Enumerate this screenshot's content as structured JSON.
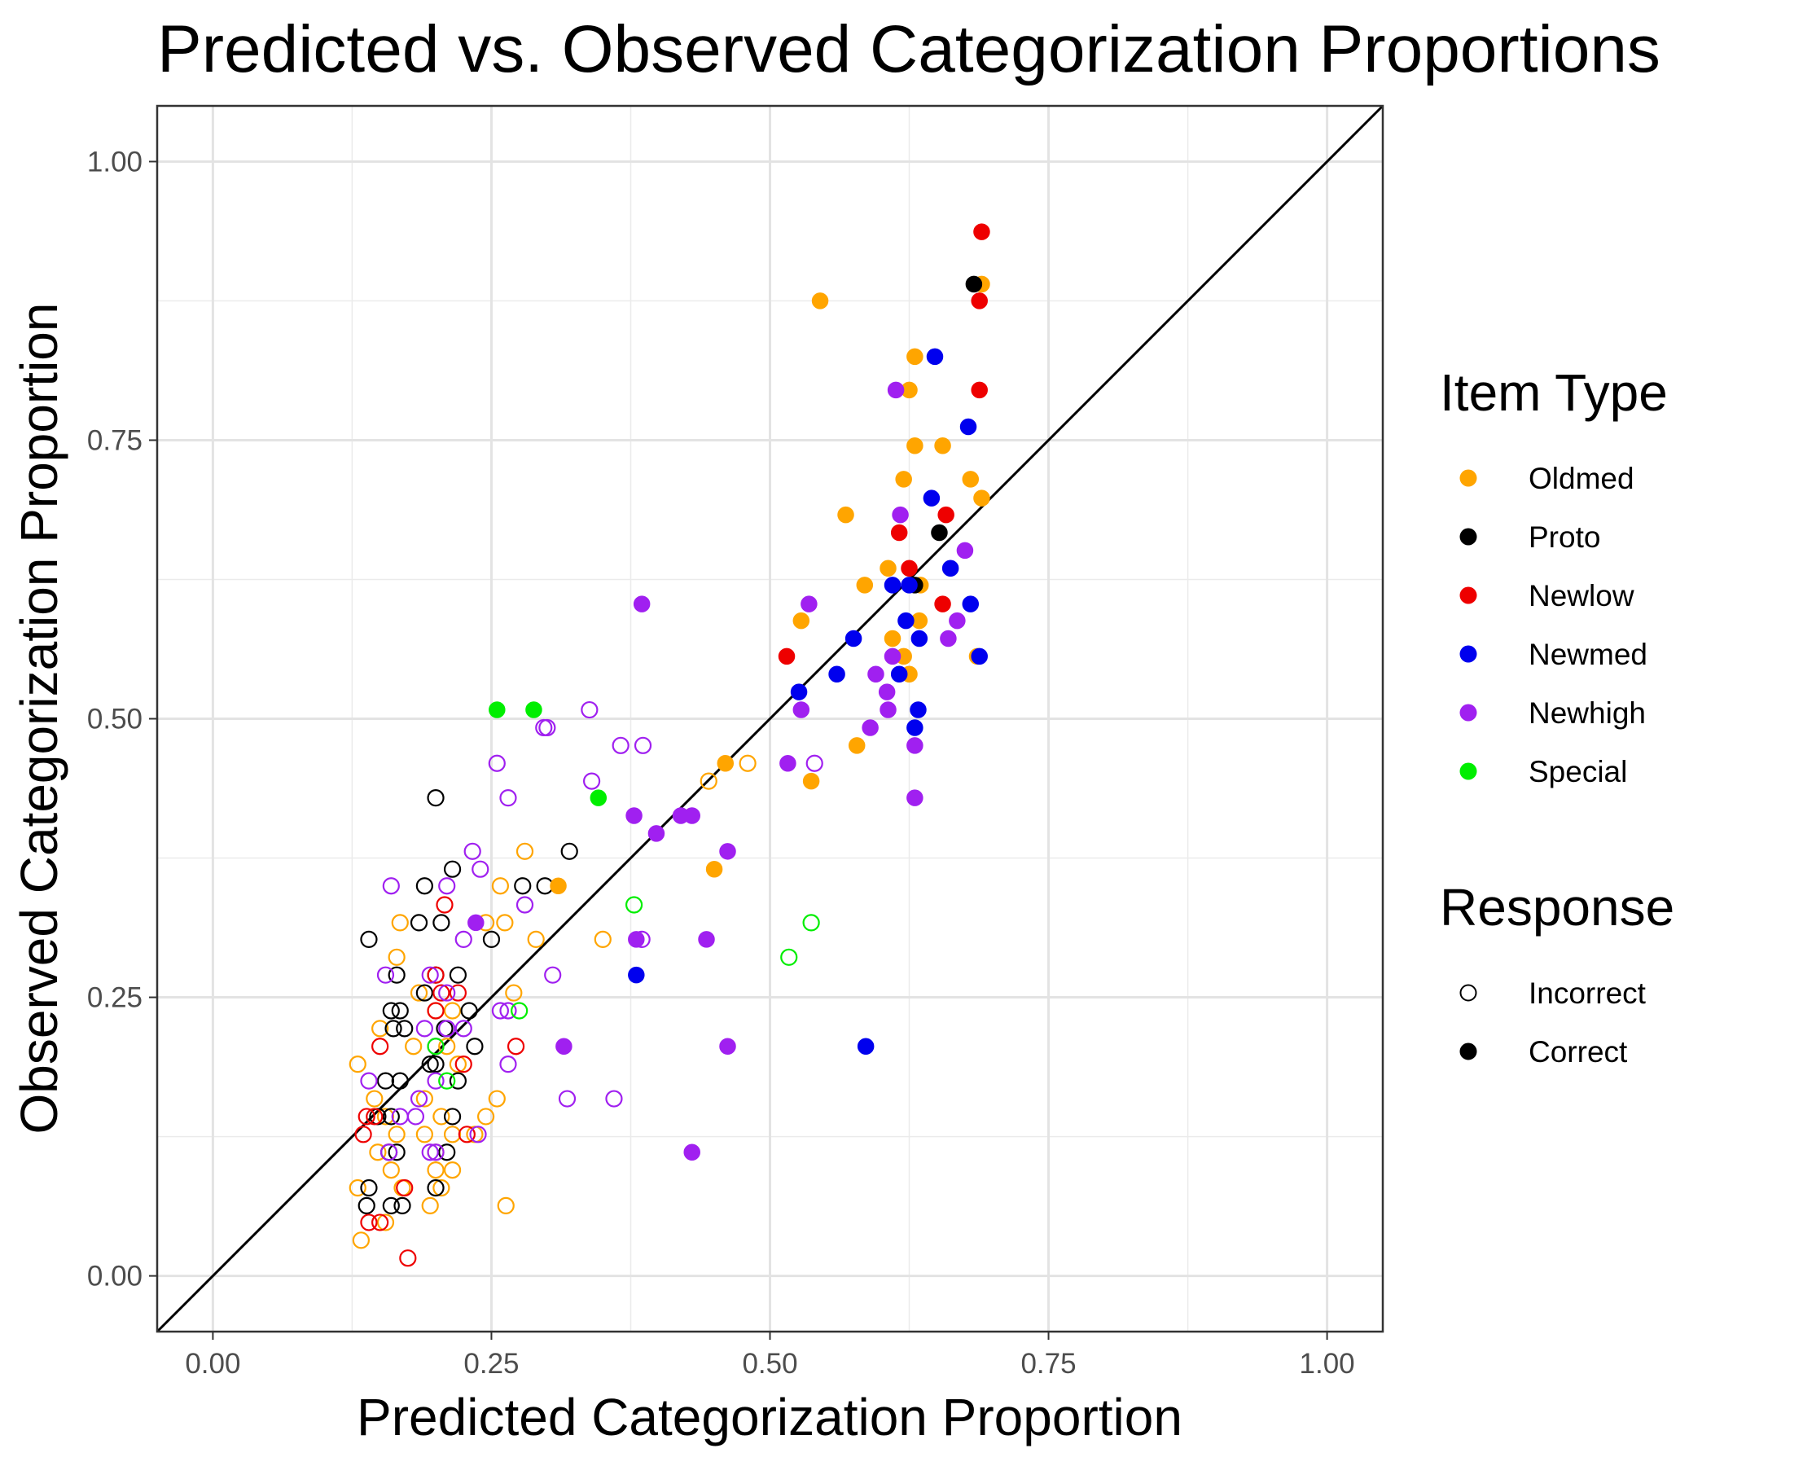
{
  "chart_data": {
    "type": "scatter",
    "title": "Predicted vs. Observed Categorization Proportions",
    "xlabel": "Predicted Categorization Proportion",
    "ylabel": "Observed Categorization Proportion",
    "xlim": [
      -0.05,
      1.05
    ],
    "ylim": [
      -0.05,
      1.05
    ],
    "x_ticks": [
      "0.00",
      "0.25",
      "0.50",
      "0.75",
      "1.00"
    ],
    "y_ticks": [
      "0.00",
      "0.25",
      "0.50",
      "0.75",
      "1.00"
    ],
    "grid": true,
    "reference_line": "y = x",
    "legend_position": "right",
    "legend_item_type_title": "Item Type",
    "legend_response_title": "Response",
    "item_types": [
      {
        "name": "Oldmed",
        "color": "#FFA500"
      },
      {
        "name": "Proto",
        "color": "#000000"
      },
      {
        "name": "Newlow",
        "color": "#EE0000"
      },
      {
        "name": "Newmed",
        "color": "#0000EE"
      },
      {
        "name": "Newhigh",
        "color": "#A020F0"
      },
      {
        "name": "Special",
        "color": "#00EE00"
      }
    ],
    "responses": [
      {
        "name": "Incorrect",
        "fill": "hollow"
      },
      {
        "name": "Correct",
        "fill": "filled"
      }
    ],
    "correct_points": {
      "Oldmed": [
        [
          0.545,
          0.875
        ],
        [
          0.63,
          0.825
        ],
        [
          0.625,
          0.795
        ],
        [
          0.63,
          0.745
        ],
        [
          0.655,
          0.745
        ],
        [
          0.62,
          0.715
        ],
        [
          0.68,
          0.715
        ],
        [
          0.69,
          0.698
        ],
        [
          0.568,
          0.683
        ],
        [
          0.606,
          0.635
        ],
        [
          0.585,
          0.62
        ],
        [
          0.635,
          0.62
        ],
        [
          0.61,
          0.572
        ],
        [
          0.634,
          0.588
        ],
        [
          0.528,
          0.588
        ],
        [
          0.62,
          0.556
        ],
        [
          0.686,
          0.556
        ],
        [
          0.625,
          0.54
        ],
        [
          0.578,
          0.476
        ],
        [
          0.537,
          0.444
        ],
        [
          0.46,
          0.46
        ],
        [
          0.45,
          0.365
        ],
        [
          0.31,
          0.35
        ],
        [
          0.69,
          0.89
        ]
      ],
      "Proto": [
        [
          0.683,
          0.89
        ],
        [
          0.652,
          0.667
        ],
        [
          0.63,
          0.62
        ]
      ],
      "Newlow": [
        [
          0.69,
          0.937
        ],
        [
          0.688,
          0.875
        ],
        [
          0.688,
          0.795
        ],
        [
          0.658,
          0.683
        ],
        [
          0.616,
          0.667
        ],
        [
          0.625,
          0.635
        ],
        [
          0.655,
          0.603
        ],
        [
          0.515,
          0.556
        ]
      ],
      "Newmed": [
        [
          0.648,
          0.825
        ],
        [
          0.678,
          0.762
        ],
        [
          0.645,
          0.698
        ],
        [
          0.662,
          0.635
        ],
        [
          0.61,
          0.62
        ],
        [
          0.625,
          0.62
        ],
        [
          0.68,
          0.603
        ],
        [
          0.575,
          0.572
        ],
        [
          0.634,
          0.572
        ],
        [
          0.622,
          0.588
        ],
        [
          0.56,
          0.54
        ],
        [
          0.616,
          0.54
        ],
        [
          0.688,
          0.556
        ],
        [
          0.526,
          0.524
        ],
        [
          0.633,
          0.508
        ],
        [
          0.63,
          0.492
        ],
        [
          0.38,
          0.27
        ],
        [
          0.586,
          0.206
        ]
      ],
      "Newhigh": [
        [
          0.613,
          0.795
        ],
        [
          0.617,
          0.683
        ],
        [
          0.675,
          0.651
        ],
        [
          0.535,
          0.603
        ],
        [
          0.385,
          0.603
        ],
        [
          0.668,
          0.588
        ],
        [
          0.66,
          0.572
        ],
        [
          0.61,
          0.556
        ],
        [
          0.595,
          0.54
        ],
        [
          0.605,
          0.524
        ],
        [
          0.528,
          0.508
        ],
        [
          0.606,
          0.508
        ],
        [
          0.59,
          0.492
        ],
        [
          0.63,
          0.476
        ],
        [
          0.516,
          0.46
        ],
        [
          0.63,
          0.429
        ],
        [
          0.378,
          0.413
        ],
        [
          0.42,
          0.413
        ],
        [
          0.43,
          0.413
        ],
        [
          0.398,
          0.397
        ],
        [
          0.462,
          0.381
        ],
        [
          0.38,
          0.302
        ],
        [
          0.443,
          0.302
        ],
        [
          0.315,
          0.206
        ],
        [
          0.462,
          0.206
        ],
        [
          0.43,
          0.111
        ],
        [
          0.236,
          0.317
        ]
      ],
      "Special": [
        [
          0.255,
          0.508
        ],
        [
          0.288,
          0.508
        ],
        [
          0.346,
          0.429
        ]
      ]
    },
    "incorrect_points": {
      "Oldmed": [
        [
          0.48,
          0.46
        ],
        [
          0.445,
          0.444
        ],
        [
          0.28,
          0.381
        ],
        [
          0.258,
          0.35
        ],
        [
          0.27,
          0.254
        ],
        [
          0.35,
          0.302
        ],
        [
          0.29,
          0.302
        ],
        [
          0.245,
          0.317
        ],
        [
          0.262,
          0.317
        ],
        [
          0.168,
          0.317
        ],
        [
          0.165,
          0.286
        ],
        [
          0.185,
          0.254
        ],
        [
          0.2,
          0.238
        ],
        [
          0.215,
          0.238
        ],
        [
          0.13,
          0.19
        ],
        [
          0.22,
          0.19
        ],
        [
          0.255,
          0.159
        ],
        [
          0.145,
          0.159
        ],
        [
          0.19,
          0.159
        ],
        [
          0.245,
          0.143
        ],
        [
          0.155,
          0.143
        ],
        [
          0.205,
          0.143
        ],
        [
          0.235,
          0.127
        ],
        [
          0.165,
          0.127
        ],
        [
          0.19,
          0.127
        ],
        [
          0.215,
          0.127
        ],
        [
          0.148,
          0.111
        ],
        [
          0.2,
          0.111
        ],
        [
          0.16,
          0.095
        ],
        [
          0.2,
          0.095
        ],
        [
          0.215,
          0.095
        ],
        [
          0.17,
          0.079
        ],
        [
          0.205,
          0.079
        ],
        [
          0.13,
          0.079
        ],
        [
          0.195,
          0.063
        ],
        [
          0.263,
          0.063
        ],
        [
          0.133,
          0.032
        ],
        [
          0.155,
          0.048
        ],
        [
          0.15,
          0.222
        ],
        [
          0.18,
          0.206
        ],
        [
          0.21,
          0.206
        ]
      ],
      "Proto": [
        [
          0.2,
          0.429
        ],
        [
          0.32,
          0.381
        ],
        [
          0.278,
          0.35
        ],
        [
          0.298,
          0.35
        ],
        [
          0.215,
          0.365
        ],
        [
          0.19,
          0.35
        ],
        [
          0.185,
          0.317
        ],
        [
          0.205,
          0.317
        ],
        [
          0.14,
          0.302
        ],
        [
          0.25,
          0.302
        ],
        [
          0.165,
          0.27
        ],
        [
          0.2,
          0.27
        ],
        [
          0.22,
          0.27
        ],
        [
          0.19,
          0.254
        ],
        [
          0.23,
          0.238
        ],
        [
          0.16,
          0.238
        ],
        [
          0.168,
          0.238
        ],
        [
          0.208,
          0.222
        ],
        [
          0.162,
          0.222
        ],
        [
          0.172,
          0.222
        ],
        [
          0.235,
          0.206
        ],
        [
          0.195,
          0.19
        ],
        [
          0.2,
          0.19
        ],
        [
          0.155,
          0.175
        ],
        [
          0.168,
          0.175
        ],
        [
          0.22,
          0.175
        ],
        [
          0.215,
          0.143
        ],
        [
          0.148,
          0.143
        ],
        [
          0.16,
          0.143
        ],
        [
          0.158,
          0.111
        ],
        [
          0.165,
          0.111
        ],
        [
          0.21,
          0.111
        ],
        [
          0.2,
          0.079
        ],
        [
          0.14,
          0.079
        ],
        [
          0.138,
          0.063
        ],
        [
          0.16,
          0.063
        ],
        [
          0.17,
          0.063
        ]
      ],
      "Newlow": [
        [
          0.228,
          0.127
        ],
        [
          0.175,
          0.016
        ],
        [
          0.14,
          0.048
        ],
        [
          0.15,
          0.048
        ],
        [
          0.172,
          0.079
        ],
        [
          0.272,
          0.206
        ],
        [
          0.2,
          0.27
        ],
        [
          0.2,
          0.238
        ],
        [
          0.205,
          0.254
        ],
        [
          0.208,
          0.333
        ],
        [
          0.22,
          0.254
        ],
        [
          0.225,
          0.19
        ],
        [
          0.15,
          0.206
        ],
        [
          0.138,
          0.143
        ],
        [
          0.145,
          0.143
        ],
        [
          0.135,
          0.127
        ]
      ],
      "Newhigh": [
        [
          0.338,
          0.508
        ],
        [
          0.297,
          0.492
        ],
        [
          0.3,
          0.492
        ],
        [
          0.255,
          0.46
        ],
        [
          0.366,
          0.476
        ],
        [
          0.386,
          0.476
        ],
        [
          0.54,
          0.46
        ],
        [
          0.34,
          0.444
        ],
        [
          0.265,
          0.429
        ],
        [
          0.233,
          0.381
        ],
        [
          0.16,
          0.35
        ],
        [
          0.21,
          0.35
        ],
        [
          0.24,
          0.365
        ],
        [
          0.28,
          0.333
        ],
        [
          0.305,
          0.27
        ],
        [
          0.155,
          0.27
        ],
        [
          0.195,
          0.27
        ],
        [
          0.2,
          0.206
        ],
        [
          0.225,
          0.302
        ],
        [
          0.258,
          0.238
        ],
        [
          0.265,
          0.238
        ],
        [
          0.265,
          0.19
        ],
        [
          0.36,
          0.159
        ],
        [
          0.318,
          0.159
        ],
        [
          0.195,
          0.111
        ],
        [
          0.2,
          0.111
        ],
        [
          0.168,
          0.143
        ],
        [
          0.182,
          0.143
        ],
        [
          0.185,
          0.159
        ],
        [
          0.2,
          0.175
        ],
        [
          0.14,
          0.175
        ],
        [
          0.21,
          0.222
        ],
        [
          0.225,
          0.222
        ],
        [
          0.19,
          0.222
        ],
        [
          0.158,
          0.111
        ],
        [
          0.238,
          0.127
        ],
        [
          0.385,
          0.302
        ],
        [
          0.21,
          0.254
        ]
      ],
      "Special": [
        [
          0.378,
          0.333
        ],
        [
          0.537,
          0.317
        ],
        [
          0.517,
          0.286
        ],
        [
          0.275,
          0.238
        ],
        [
          0.2,
          0.206
        ],
        [
          0.21,
          0.175
        ]
      ]
    }
  }
}
